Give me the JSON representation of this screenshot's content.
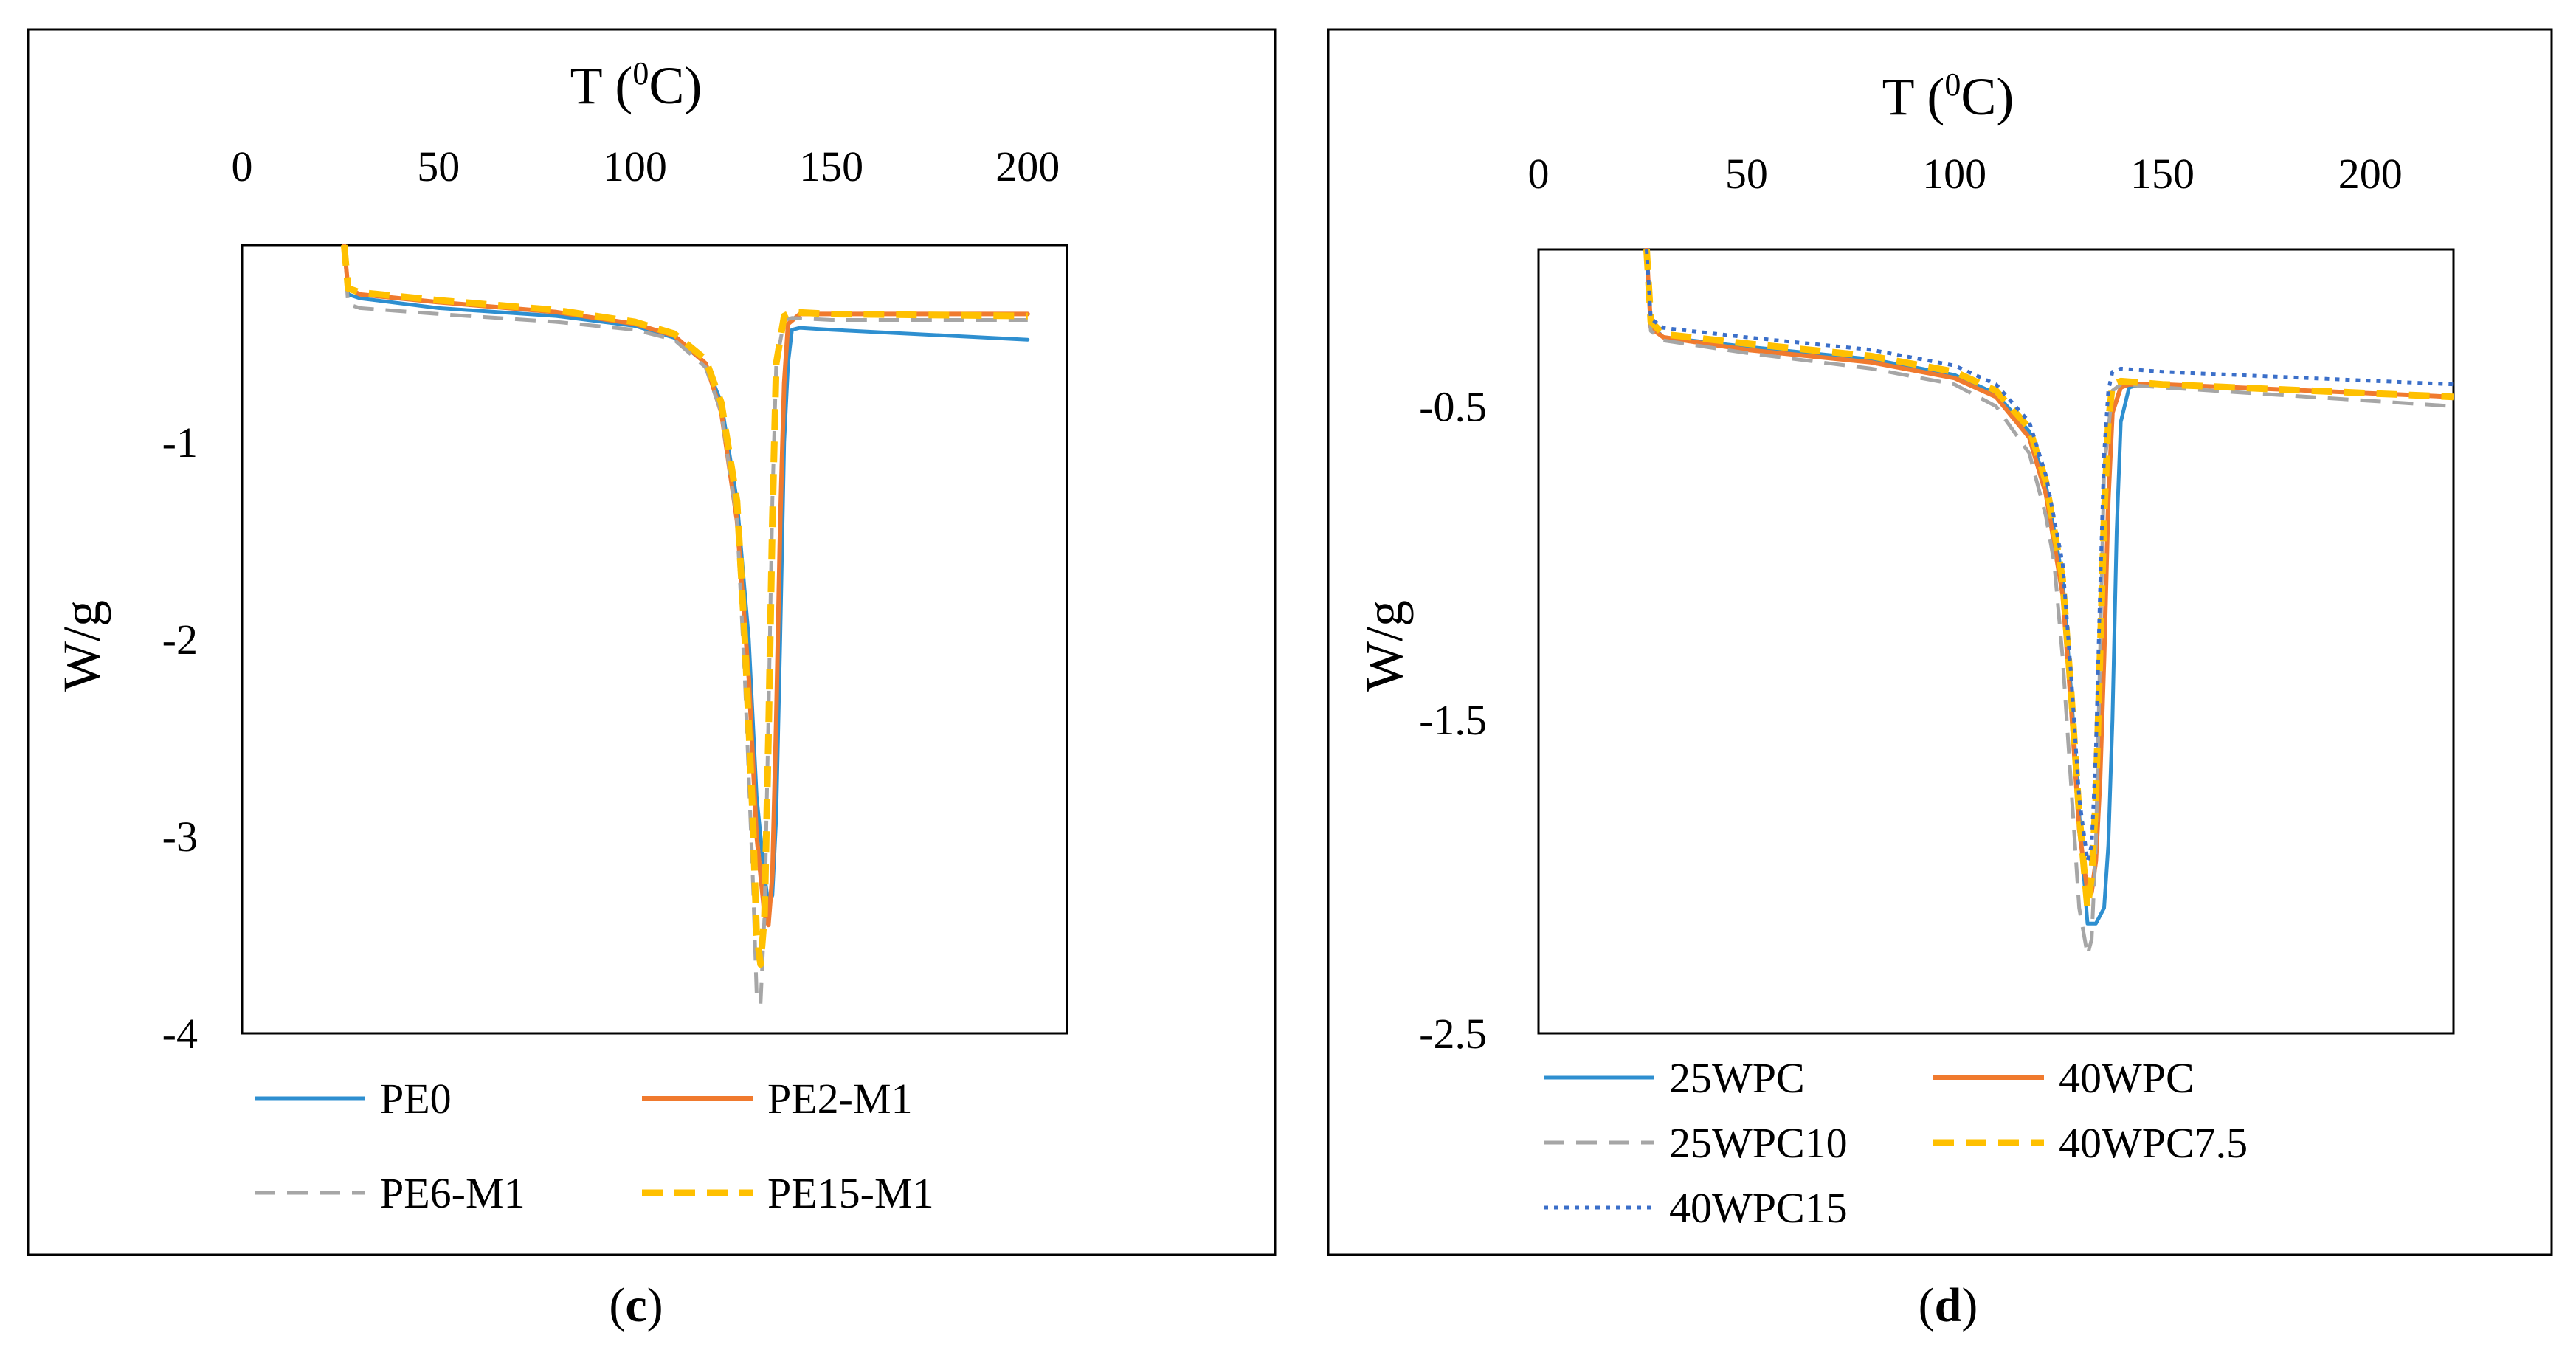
{
  "colors": {
    "blue": "#2e8fd0",
    "orange": "#f07a2e",
    "gray": "#a6a6a6",
    "yellow": "#ffc000",
    "dotblue": "#3b6fc9"
  },
  "chart_data": [
    {
      "type": "line",
      "panel_label": "c",
      "xlabel": "T (0C)",
      "xlabel_main": "T (",
      "xlabel_sup": "0",
      "xlabel_tail": "C)",
      "ylabel": "W/g",
      "xlim": [
        0,
        210
      ],
      "ylim": [
        -4,
        0
      ],
      "xticks": [
        0,
        50,
        100,
        150,
        200
      ],
      "yticks": [
        -1,
        -2,
        -3,
        -4
      ],
      "x_axis_position": "top",
      "grid": false,
      "legend_position": "bottom",
      "series": [
        {
          "name": "PE0",
          "color": "#2e8fd0",
          "dash": "solid",
          "width": 5,
          "x": [
            26,
            27,
            30,
            50,
            80,
            100,
            110,
            118,
            122,
            126,
            129,
            131,
            133,
            134,
            135,
            136,
            137,
            138,
            139,
            140,
            142,
            150,
            200
          ],
          "y": [
            0,
            -0.25,
            -0.27,
            -0.32,
            -0.36,
            -0.41,
            -0.47,
            -0.6,
            -0.8,
            -1.3,
            -2.0,
            -2.8,
            -3.2,
            -3.35,
            -3.3,
            -2.9,
            -2.0,
            -1.0,
            -0.6,
            -0.43,
            -0.42,
            -0.43,
            -0.48
          ]
        },
        {
          "name": "PE2-M1",
          "color": "#f07a2e",
          "dash": "solid",
          "width": 6,
          "x": [
            26,
            27,
            30,
            50,
            80,
            100,
            110,
            118,
            122,
            126,
            129,
            131,
            133,
            134,
            135,
            136,
            137,
            138,
            139,
            142,
            150,
            200
          ],
          "y": [
            0,
            -0.22,
            -0.25,
            -0.29,
            -0.34,
            -0.4,
            -0.46,
            -0.6,
            -0.85,
            -1.4,
            -2.2,
            -3.0,
            -3.4,
            -3.45,
            -3.2,
            -2.4,
            -1.4,
            -0.7,
            -0.4,
            -0.35,
            -0.35,
            -0.35
          ]
        },
        {
          "name": "PE6-M1",
          "color": "#a6a6a6",
          "dash": "dashed",
          "width": 5,
          "x": [
            26,
            27,
            30,
            50,
            80,
            100,
            110,
            118,
            122,
            126,
            128,
            130,
            131,
            132,
            133,
            134,
            135,
            136,
            138,
            140,
            150,
            200
          ],
          "y": [
            0,
            -0.3,
            -0.32,
            -0.35,
            -0.39,
            -0.43,
            -0.48,
            -0.62,
            -0.85,
            -1.4,
            -2.2,
            -3.2,
            -3.8,
            -3.85,
            -3.4,
            -2.4,
            -1.3,
            -0.6,
            -0.38,
            -0.37,
            -0.38,
            -0.38
          ]
        },
        {
          "name": "PE15-M1",
          "color": "#ffc000",
          "dash": "dashed",
          "width": 9,
          "x": [
            26,
            27,
            30,
            50,
            80,
            100,
            110,
            118,
            122,
            126,
            128,
            130,
            131,
            132,
            133,
            134,
            135,
            136,
            138,
            140,
            150,
            200
          ],
          "y": [
            0,
            -0.22,
            -0.24,
            -0.28,
            -0.33,
            -0.39,
            -0.45,
            -0.58,
            -0.8,
            -1.3,
            -2.0,
            -2.9,
            -3.5,
            -3.65,
            -3.4,
            -2.5,
            -1.4,
            -0.6,
            -0.36,
            -0.34,
            -0.35,
            -0.36
          ]
        }
      ]
    },
    {
      "type": "line",
      "panel_label": "d",
      "xlabel": "T (0C)",
      "xlabel_main": "T (",
      "xlabel_sup": "0",
      "xlabel_tail": "C)",
      "ylabel": "W/g",
      "xlim": [
        0,
        220
      ],
      "ylim": [
        -2.5,
        0
      ],
      "xticks": [
        0,
        50,
        100,
        150,
        200
      ],
      "yticks": [
        -0.5,
        -1.5,
        -2.5
      ],
      "x_axis_position": "top",
      "grid": false,
      "legend_position": "bottom",
      "series": [
        {
          "name": "25WPC",
          "color": "#2e8fd0",
          "dash": "solid",
          "width": 5,
          "x": [
            26,
            27,
            30,
            50,
            80,
            100,
            110,
            118,
            122,
            126,
            128,
            130,
            132,
            134,
            136,
            137,
            138,
            139,
            140,
            142,
            145,
            150,
            220
          ],
          "y": [
            0,
            -0.24,
            -0.28,
            -0.31,
            -0.35,
            -0.4,
            -0.46,
            -0.58,
            -0.75,
            -1.05,
            -1.4,
            -1.8,
            -2.15,
            -2.15,
            -2.1,
            -1.9,
            -1.5,
            -0.9,
            -0.55,
            -0.44,
            -0.43,
            -0.43,
            -0.47
          ]
        },
        {
          "name": "40WPC",
          "color": "#f07a2e",
          "dash": "solid",
          "width": 6,
          "x": [
            26,
            27,
            30,
            50,
            80,
            100,
            110,
            118,
            122,
            126,
            128,
            130,
            132,
            133,
            134,
            135,
            136,
            137,
            138,
            140,
            142,
            150,
            220
          ],
          "y": [
            0,
            -0.25,
            -0.28,
            -0.32,
            -0.36,
            -0.41,
            -0.47,
            -0.6,
            -0.78,
            -1.1,
            -1.45,
            -1.85,
            -2.05,
            -2.05,
            -1.95,
            -1.7,
            -1.3,
            -0.8,
            -0.52,
            -0.44,
            -0.43,
            -0.43,
            -0.47
          ]
        },
        {
          "name": "25WPC10",
          "color": "#a6a6a6",
          "dash": "dashed",
          "width": 5,
          "x": [
            26,
            27,
            30,
            50,
            80,
            100,
            110,
            118,
            122,
            124,
            126,
            128,
            130,
            132,
            133,
            134,
            135,
            136,
            138,
            140,
            150,
            220
          ],
          "y": [
            0,
            -0.26,
            -0.29,
            -0.33,
            -0.38,
            -0.43,
            -0.5,
            -0.65,
            -0.85,
            -1.0,
            -1.3,
            -1.7,
            -2.1,
            -2.25,
            -2.2,
            -1.9,
            -1.3,
            -0.7,
            -0.45,
            -0.43,
            -0.44,
            -0.5
          ]
        },
        {
          "name": "40WPC7.5",
          "color": "#ffc000",
          "dash": "dashed",
          "width": 9,
          "x": [
            26,
            27,
            30,
            50,
            80,
            100,
            110,
            118,
            122,
            126,
            128,
            130,
            132,
            133,
            134,
            135,
            136,
            137,
            138,
            140,
            150,
            220
          ],
          "y": [
            0,
            -0.23,
            -0.27,
            -0.3,
            -0.34,
            -0.39,
            -0.45,
            -0.57,
            -0.74,
            -1.05,
            -1.4,
            -1.8,
            -2.1,
            -2.0,
            -1.75,
            -1.3,
            -0.85,
            -0.55,
            -0.43,
            -0.42,
            -0.43,
            -0.47
          ]
        },
        {
          "name": "40WPC15",
          "color": "#3b6fc9",
          "dash": "dotted",
          "width": 5,
          "x": [
            26,
            27,
            30,
            50,
            80,
            100,
            110,
            118,
            122,
            126,
            128,
            130,
            132,
            133,
            134,
            135,
            136,
            137,
            138,
            140,
            150,
            220
          ],
          "y": [
            0,
            -0.22,
            -0.25,
            -0.28,
            -0.32,
            -0.37,
            -0.43,
            -0.55,
            -0.72,
            -1.0,
            -1.35,
            -1.75,
            -1.95,
            -1.9,
            -1.6,
            -1.1,
            -0.65,
            -0.45,
            -0.39,
            -0.38,
            -0.39,
            -0.43
          ]
        }
      ]
    }
  ]
}
